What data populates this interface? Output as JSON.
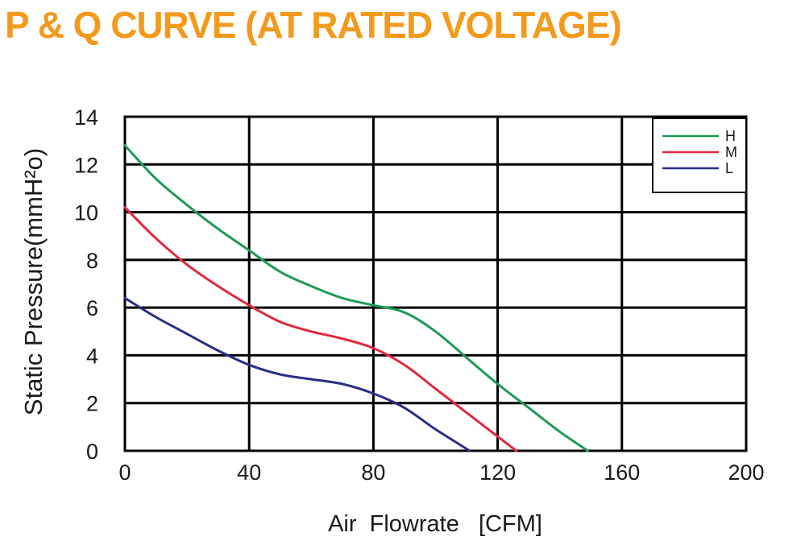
{
  "chart_data": {
    "type": "line",
    "title": "P & Q CURVE (AT RATED VOLTAGE)",
    "xlabel": "Air  Flowrate   [CFM]",
    "ylabel": "Static Pressure(mmH²o)",
    "xlim": [
      0,
      200
    ],
    "ylim": [
      0,
      14
    ],
    "xticks": [
      0,
      40,
      80,
      120,
      160,
      200
    ],
    "yticks": [
      0,
      2,
      4,
      6,
      8,
      10,
      12,
      14
    ],
    "grid": true,
    "legend_position": "top-right",
    "series": [
      {
        "name": "H",
        "color": "#1e9a55",
        "x": [
          0,
          10,
          20,
          30,
          40,
          50,
          60,
          70,
          80,
          90,
          100,
          110,
          120,
          130,
          140,
          149
        ],
        "y": [
          12.8,
          11.4,
          10.3,
          9.3,
          8.4,
          7.5,
          6.9,
          6.4,
          6.1,
          5.8,
          5.0,
          3.9,
          2.8,
          1.8,
          0.8,
          0
        ]
      },
      {
        "name": "M",
        "color": "#e0283c",
        "x": [
          0,
          10,
          20,
          30,
          40,
          50,
          60,
          70,
          80,
          90,
          100,
          110,
          120,
          126
        ],
        "y": [
          10.2,
          8.9,
          7.8,
          6.9,
          6.1,
          5.4,
          5.0,
          4.7,
          4.3,
          3.6,
          2.6,
          1.6,
          0.6,
          0
        ]
      },
      {
        "name": "L",
        "color": "#2a2f86",
        "x": [
          0,
          10,
          20,
          30,
          40,
          50,
          60,
          70,
          80,
          90,
          100,
          111
        ],
        "y": [
          6.4,
          5.6,
          4.9,
          4.2,
          3.6,
          3.2,
          3.0,
          2.8,
          2.4,
          1.8,
          0.9,
          0
        ]
      }
    ]
  },
  "colors": {
    "title": "#f39a1c",
    "grid": "#000000",
    "text": "#1a1a1a"
  }
}
